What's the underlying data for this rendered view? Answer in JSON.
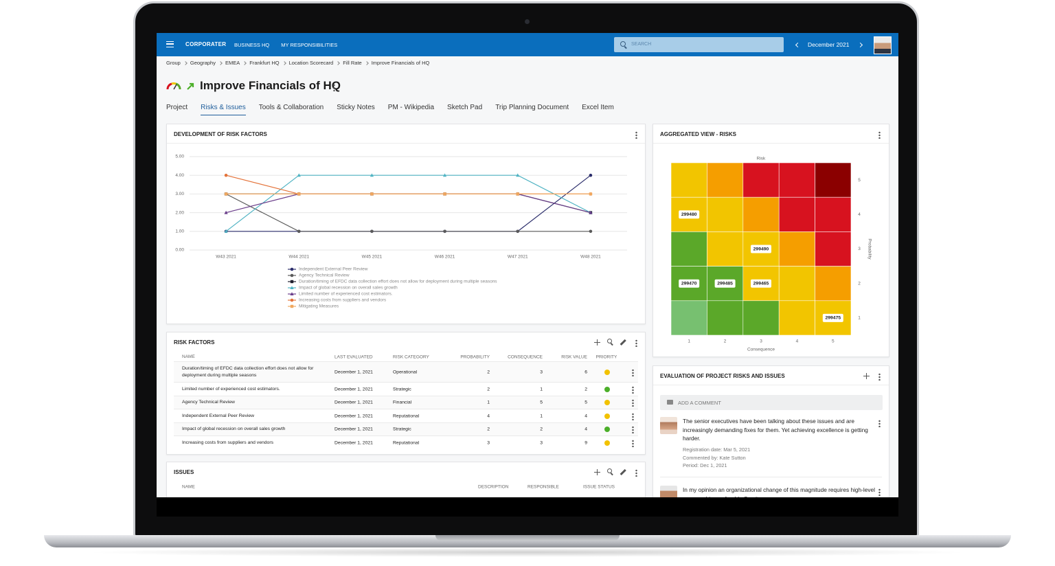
{
  "nav": {
    "brand": "CORPORATER",
    "items": [
      "BUSINESS HQ",
      "MY RESPONSIBILITIES"
    ],
    "search": "SEARCH",
    "period": "December 2021"
  },
  "breadcrumb": [
    "Group",
    "Geography",
    "EMEA",
    "Frankfurt HQ",
    "Location Scorecard",
    "Fill Rate",
    "Improve Financials of HQ"
  ],
  "title": "Improve Financials of HQ",
  "tabs": [
    "Project",
    "Risks & Issues",
    "Tools & Collaboration",
    "Sticky Notes",
    "PM - Wikipedia",
    "Sketch Pad",
    "Trip Planning Document",
    "Excel Item"
  ],
  "active_tab": 1,
  "chart_data": [
    {
      "type": "line",
      "title": "DEVELOPMENT OF RISK FACTORS",
      "categories": [
        "W43 2021",
        "W44 2021",
        "W45 2021",
        "W46 2021",
        "W47 2021",
        "W48 2021"
      ],
      "ylim": [
        0,
        5
      ],
      "yticks": [
        {
          "value": 0,
          "label": "0.00"
        },
        {
          "value": 1,
          "label": "1.00"
        },
        {
          "value": 2,
          "label": "2.00"
        },
        {
          "value": 3,
          "label": "3.00"
        },
        {
          "value": 4,
          "label": "4.00"
        },
        {
          "value": 5,
          "label": "5.00"
        }
      ],
      "grid": true,
      "legend": "bottom",
      "series": [
        {
          "name": "Independent External Peer Review",
          "color": "#2b2d6b",
          "marker": "circle",
          "values": [
            1,
            1,
            1,
            1,
            1,
            4
          ]
        },
        {
          "name": "Agency Technical Review",
          "color": "#5a5a5a",
          "marker": "circle",
          "values": [
            3,
            1,
            1,
            1,
            1,
            1
          ]
        },
        {
          "name": "Duration/timing of EFDC data collection effort does not allow for deployment during multiple seasons",
          "color": "#1f1f2e",
          "marker": "square",
          "values": [
            3,
            3,
            3,
            3,
            3,
            2
          ]
        },
        {
          "name": "Impact of global recession on overall sales growth",
          "color": "#4fb3c3",
          "marker": "triangle",
          "values": [
            1,
            4,
            4,
            4,
            4,
            2
          ]
        },
        {
          "name": "Limited number of experienced cost estimators.",
          "color": "#6a3d8a",
          "marker": "triangle",
          "values": [
            2,
            3,
            3,
            3,
            3,
            2
          ]
        },
        {
          "name": "Increasing costs from suppliers and vendors",
          "color": "#e4733a",
          "marker": "circle",
          "values": [
            4,
            3,
            3,
            3,
            3,
            3
          ]
        },
        {
          "name": "Mitigating Measures",
          "color": "#f0a860",
          "marker": "square",
          "values": [
            3,
            3,
            3,
            3,
            3,
            3
          ]
        }
      ]
    },
    {
      "type": "heatmap",
      "title": "AGGREGATED VIEW - RISKS",
      "subtitle": "Risk",
      "xlabel": "Consequence",
      "ylabel": "Probability",
      "xlim": [
        0.5,
        5.5
      ],
      "ylim": [
        0.5,
        5.5
      ],
      "xticks": [
        1,
        2,
        3,
        4,
        5
      ],
      "yticks": [
        5,
        4,
        3,
        2,
        1
      ],
      "colors": [
        [
          "#f2c500",
          "#f59e00",
          "#d7121f",
          "#d7121f",
          "#8b0000"
        ],
        [
          "#f2c500",
          "#f2c500",
          "#f59e00",
          "#d7121f",
          "#d7121f"
        ],
        [
          "#5ba829",
          "#f2c500",
          "#f2c500",
          "#f59e00",
          "#d7121f"
        ],
        [
          "#5ba829",
          "#5ba829",
          "#f2c500",
          "#f2c500",
          "#f59e00"
        ],
        [
          "#77c070",
          "#5ba829",
          "#5ba829",
          "#f2c500",
          "#f2c500"
        ]
      ],
      "cells": [
        {
          "x": 1,
          "y": 4,
          "label": "299480"
        },
        {
          "x": 3,
          "y": 3,
          "label": "299490"
        },
        {
          "x": 1,
          "y": 2,
          "label": "299470"
        },
        {
          "x": 2,
          "y": 2,
          "label": "299485"
        },
        {
          "x": 3,
          "y": 2,
          "label": "299465"
        },
        {
          "x": 5,
          "y": 1,
          "label": "299475"
        }
      ]
    }
  ],
  "risk_factors": {
    "title": "RISK FACTORS",
    "columns": [
      "NAME",
      "LAST EVALUATED",
      "RISK CATEGORY",
      "PROBABILITY",
      "CONSEQUENCE",
      "RISK VALUE",
      "PRIORITY"
    ],
    "rows": [
      [
        "Duration/timing of EFDC data collection effort does not allow for deployment during multiple seasons",
        "December 1, 2021",
        "Operational",
        2,
        3,
        6
      ],
      [
        "Limited number of experienced cost estimators.",
        "December 1, 2021",
        "Strategic",
        2,
        1,
        2
      ],
      [
        "Agency Technical Review",
        "December 1, 2021",
        "Financial",
        1,
        5,
        5
      ],
      [
        "Independent External Peer Review",
        "December 1, 2021",
        "Reputational",
        4,
        1,
        4
      ],
      [
        "Impact of global recession on overall sales growth",
        "December 1, 2021",
        "Strategic",
        2,
        2,
        4
      ],
      [
        "Increasing costs from suppliers and vendors",
        "December 1, 2021",
        "Reputational",
        3,
        3,
        9
      ]
    ],
    "priority_colors": [
      "#f2c200",
      "#4caf2a",
      "#f2c200",
      "#f2c200",
      "#4caf2a",
      "#f2c200"
    ]
  },
  "issues": {
    "title": "ISSUES",
    "columns": [
      "NAME",
      "DESCRIPTION",
      "RESPONSIBLE",
      "ISSUE STATUS"
    ]
  },
  "evaluation": {
    "title": "EVALUATION OF PROJECT RISKS AND ISSUES",
    "add_comment": "ADD A COMMENT",
    "comments": [
      {
        "text": "The senior executives have been talking about these issues and are increasingly demanding fixes for them. Yet achieving excellence is getting harder.",
        "details": [
          "Registration date: Mar 5, 2021",
          "Commented by: Kate Sutton",
          "Period: Dec 1, 2021"
        ]
      },
      {
        "text": "In my opinion an organizational change of this magnitude requires high-level sponsorship, preferably C-suite"
      }
    ]
  }
}
